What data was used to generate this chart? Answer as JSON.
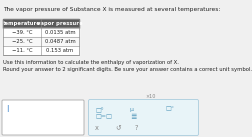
{
  "title_text": "The vapor pressure of Substance X is measured at several temperatures:",
  "table_headers": [
    "temperature",
    "vapor pressure"
  ],
  "table_rows": [
    [
      "−39. °C",
      "0.0135 atm"
    ],
    [
      "−25. °C",
      "0.0487 atm"
    ],
    [
      "−11. °C",
      "0.153 atm"
    ]
  ],
  "instruction1": "Use this information to calculate the enthalpy of vaporization of X.",
  "instruction2": "Round your answer to 2 significant digits. Be sure your answer contains a correct unit symbol.",
  "bg_color": "#f0f0f0",
  "table_header_bg": "#5b5b5b",
  "table_header_fg": "#ffffff",
  "input_box_fg": "#4488cc",
  "panel_bg": "#e8f4f8",
  "panel_border": "#aaccdd",
  "btn_color": "#5599bb",
  "btn_bottom_color": "#888888",
  "x10_label": "×10",
  "cursor": "|",
  "sym_top": [
    "□⁰",
    "μ",
    "□°"
  ],
  "sym_mid_left": "□=□",
  "sym_mid_right": "≣",
  "sym_bot": [
    "x",
    "↺",
    "?"
  ]
}
